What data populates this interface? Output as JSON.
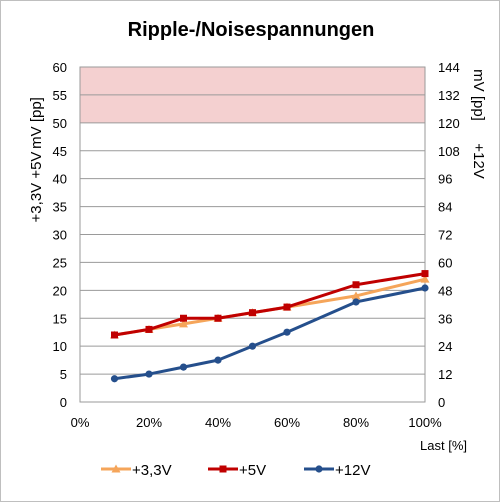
{
  "chart_data": {
    "type": "line",
    "title": "Ripple-/Noisespannungen",
    "xlabel": "Last [%]",
    "ylabel_left": [
      "+3,3V +5V",
      "mV [pp]"
    ],
    "ylabel_right": [
      "+12V",
      "mV [pp]"
    ],
    "x": [
      10,
      20,
      30,
      40,
      50,
      60,
      80,
      100
    ],
    "xlim": [
      0,
      100
    ],
    "x_ticks": [
      "0%",
      "20%",
      "40%",
      "60%",
      "80%",
      "100%"
    ],
    "ylim_left": [
      0,
      60
    ],
    "ylim_right": [
      0,
      144
    ],
    "y_ticks_left": [
      "0",
      "5",
      "10",
      "15",
      "20",
      "25",
      "30",
      "35",
      "40",
      "45",
      "50",
      "55",
      "60"
    ],
    "y_ticks_right": [
      "0",
      "12",
      "24",
      "36",
      "48",
      "60",
      "72",
      "84",
      "96",
      "108",
      "120",
      "132",
      "144"
    ],
    "limit_band": {
      "from": 50,
      "to": 60,
      "color": "#f4d0d0"
    },
    "grid": true,
    "legend_position": "bottom",
    "series": [
      {
        "name": "+3,3V",
        "axis": "left",
        "color": "#f5a55a",
        "marker": "triangle",
        "values": [
          12,
          13,
          14,
          15,
          16,
          17,
          19,
          22
        ]
      },
      {
        "name": "+5V",
        "axis": "left",
        "color": "#c00000",
        "marker": "square",
        "values": [
          12,
          13,
          15,
          15,
          16,
          17,
          21,
          23
        ]
      },
      {
        "name": "+12V",
        "axis": "right",
        "color": "#254f8c",
        "marker": "circle",
        "values": [
          10,
          12,
          15,
          18,
          24,
          30,
          43,
          49
        ]
      }
    ]
  }
}
